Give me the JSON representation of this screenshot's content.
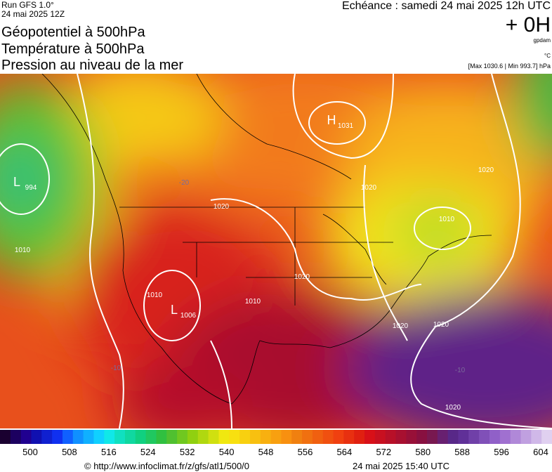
{
  "header": {
    "run": "Run GFS 1.0°",
    "run_date": "24 mai 2025 12Z",
    "titles": [
      "Géopotentiel à 500hPa",
      "Température à 500hPa",
      "Pression au niveau de la mer"
    ],
    "echeance": "Echéance : samedi 24 mai 2025 12h UTC",
    "offset": "+ 0H",
    "unit_geo": "gpdam",
    "unit_temp": "°C",
    "pressure_range": "[Max 1030.6 | Min 993.7] hPa"
  },
  "map": {
    "centers": [
      {
        "letter": "H",
        "value": "1031"
      },
      {
        "letter": "L",
        "value": "994"
      },
      {
        "letter": "L",
        "value": "1006"
      }
    ],
    "isobar_labels": [
      "1020",
      "1020",
      "1020",
      "1020",
      "1020",
      "1020",
      "1010",
      "1010",
      "1010",
      "1010",
      "1020"
    ],
    "temp_labels": [
      "-20",
      "-10",
      "-10"
    ]
  },
  "colorbar": {
    "ticks": [
      "500",
      "508",
      "516",
      "524",
      "532",
      "540",
      "548",
      "556",
      "564",
      "572",
      "580",
      "588",
      "596",
      "604"
    ]
  },
  "footer": {
    "url": "© http://www.infoclimat.fr/z/gfs/atl1/500/0",
    "timestamp": "24 mai 2025 15:40 UTC"
  }
}
